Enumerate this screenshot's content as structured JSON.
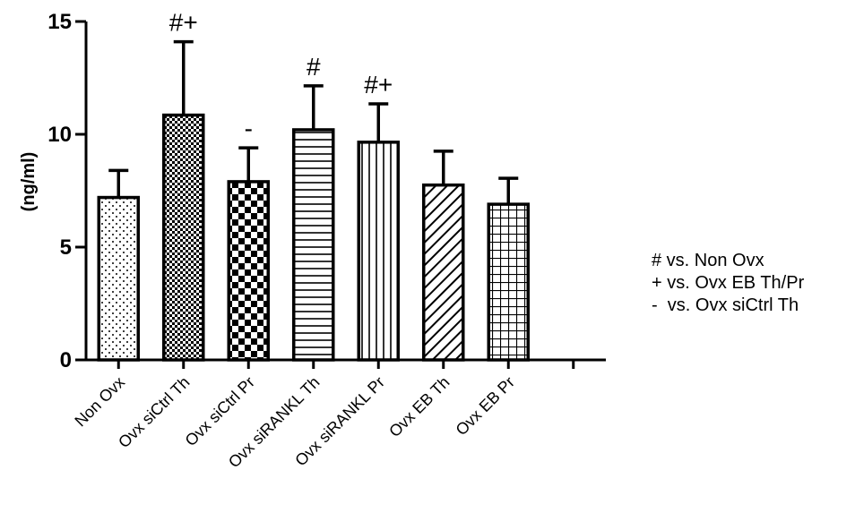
{
  "chart_data": {
    "type": "bar",
    "title": "",
    "xlabel": "",
    "ylabel": "(ng/ml)",
    "ylim": [
      0,
      15
    ],
    "yticks": [
      0,
      5,
      10,
      15
    ],
    "grid": false,
    "categories": [
      "Non Ovx",
      "Ovx siCtrl Th",
      "Ovx siCtrl Pr",
      "Ovx siRANKL Th",
      "Ovx siRANKL Pr",
      "Ovx EB Th",
      "Ovx EB Pr"
    ],
    "values": [
      7.2,
      10.85,
      7.9,
      10.2,
      9.65,
      7.75,
      6.9
    ],
    "error_upper": [
      8.4,
      14.1,
      9.4,
      12.15,
      11.35,
      9.25,
      8.05
    ],
    "annotations": [
      "",
      "#+",
      "-",
      "#",
      "#+",
      "",
      ""
    ],
    "patterns": [
      "dots",
      "dense-checker",
      "checker",
      "horizontal-lines",
      "vertical-lines",
      "diagonal-lines",
      "grid"
    ],
    "extra_empty_tick": true,
    "legend_notes": [
      "# vs. Non Ovx",
      "+ vs. Ovx EB Th/Pr",
      "-  vs. Ovx siCtrl Th"
    ],
    "legend_placement": "right"
  }
}
